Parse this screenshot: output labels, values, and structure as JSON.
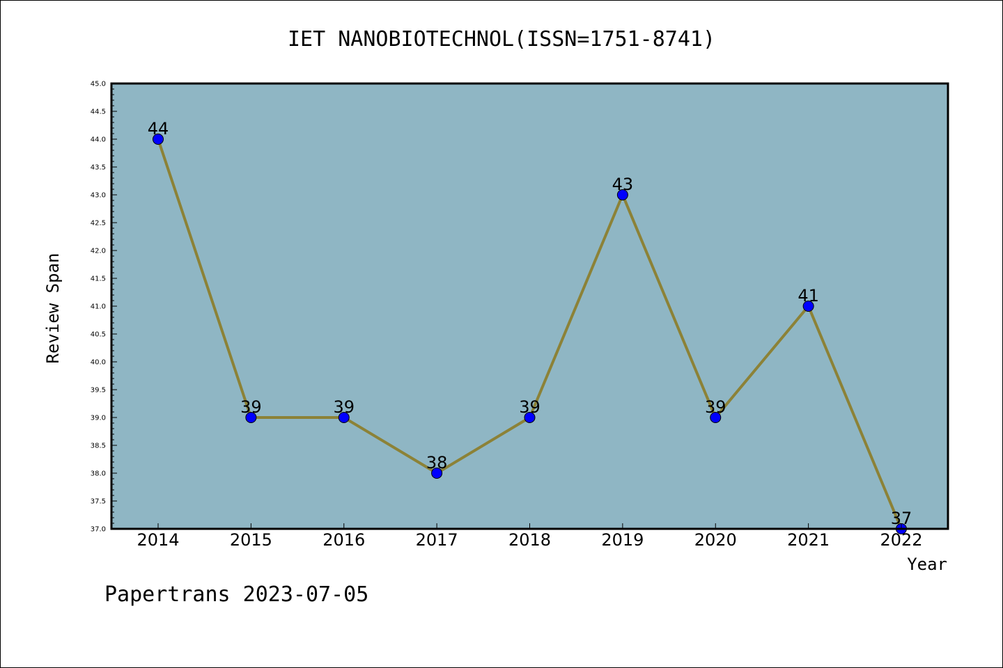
{
  "chart_data": {
    "type": "line",
    "title": "IET NANOBIOTECHNOL(ISSN=1751-8741)",
    "xlabel": "Year",
    "ylabel": "Review Span",
    "x": [
      "2014",
      "2015",
      "2016",
      "2017",
      "2018",
      "2019",
      "2020",
      "2021",
      "2022"
    ],
    "series": [
      {
        "values": [
          44,
          39,
          39,
          38,
          39,
          43,
          39,
          41,
          37
        ]
      }
    ],
    "data_labels": [
      "44",
      "39",
      "39",
      "38",
      "39",
      "43",
      "39",
      "41",
      "37"
    ],
    "ylim": [
      37.0,
      45.0
    ],
    "ytick_step": 0.5,
    "grid": false,
    "colors": {
      "plot_background": "#8fb6c4",
      "line": "#8c8237",
      "marker": "#0000ff"
    }
  },
  "footer": "Papertrans 2023-07-05"
}
